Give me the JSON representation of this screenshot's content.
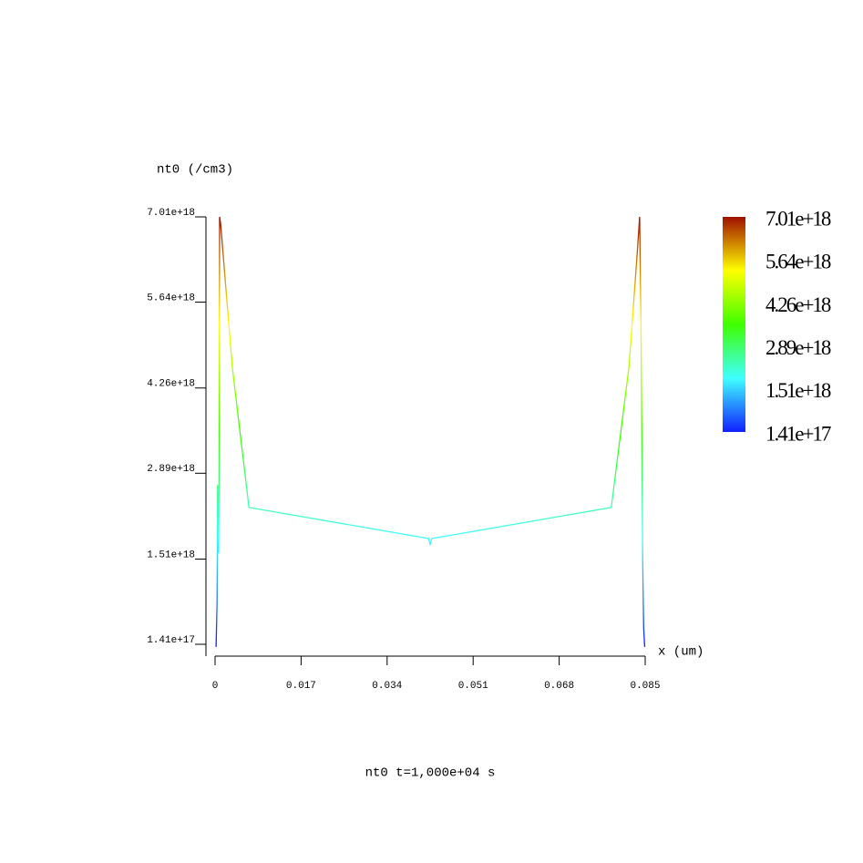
{
  "chart_data": {
    "type": "line",
    "title": "nt0 t=1,000e+04 s",
    "y_label": "nt0 (/cm3)",
    "x_label": "x (um)",
    "xlim": [
      0,
      0.085
    ],
    "xticks": [
      0,
      0.017,
      0.034,
      0.051,
      0.068,
      0.085
    ],
    "ylim": [
      1.41e+17,
      7.01e+18
    ],
    "yticks": [
      {
        "value": 1.41e+17,
        "label": "1.41e+17"
      },
      {
        "value": 1.51e+18,
        "label": "1.51e+18"
      },
      {
        "value": 2.89e+18,
        "label": "2.89e+18"
      },
      {
        "value": 4.26e+18,
        "label": "4.26e+18"
      },
      {
        "value": 5.64e+18,
        "label": "5.64e+18"
      },
      {
        "value": 7.01e+18,
        "label": "7.01e+18"
      }
    ],
    "colorscale": [
      "#1020ff",
      "#40ffff",
      "#40ff00",
      "#ffff00",
      "#a01000"
    ],
    "colorbar": true,
    "x": [
      0.0002,
      0.0004,
      0.0005,
      0.0007,
      0.0008,
      0.0009,
      0.0011,
      0.0016,
      0.0034,
      0.0067,
      0.0422,
      0.0425,
      0.0428,
      0.0783,
      0.0818,
      0.0834,
      0.0839,
      0.0842,
      0.0844,
      0.0845,
      0.0847,
      0.0849
    ],
    "values": [
      1e+17,
      8.3e+17,
      2.7e+18,
      1.6e+18,
      3e+18,
      7.01e+18,
      6.9e+18,
      6.4e+18,
      4.6e+18,
      2.34e+18,
      1.84e+18,
      1.75e+18,
      1.84e+18,
      2.34e+18,
      4.6e+18,
      6.4e+18,
      7.01e+18,
      5e+18,
      2.7e+18,
      1.5e+18,
      4e+17,
      1e+17
    ]
  }
}
